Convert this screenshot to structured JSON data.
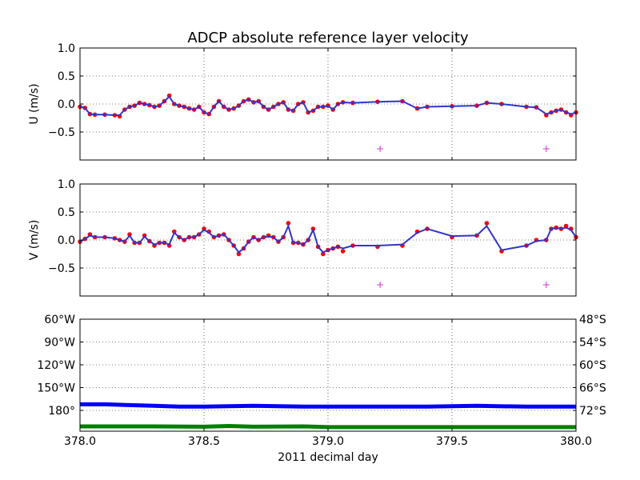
{
  "title": "ADCP absolute reference layer velocity",
  "chart_data": [
    {
      "type": "line",
      "panel": "u",
      "ylabel": "U (m/s)",
      "xlim": [
        378.0,
        380.0
      ],
      "ylim": [
        -1.0,
        1.0
      ],
      "yticks": [
        -0.5,
        0.0,
        0.5,
        1.0
      ],
      "ytick_labels": [
        "−0.5",
        "0.0",
        "0.5",
        "1.0"
      ],
      "xticks": [
        378.0,
        378.5,
        379.0,
        379.5,
        380.0
      ],
      "grid": true,
      "series": [
        {
          "style": "dots",
          "color": "#ff0000",
          "x": [
            378.0,
            378.02,
            378.04,
            378.06,
            378.1,
            378.14,
            378.16,
            378.18,
            378.2,
            378.22,
            378.24,
            378.26,
            378.28,
            378.3,
            378.32,
            378.34,
            378.36,
            378.38,
            378.4,
            378.42,
            378.44,
            378.46,
            378.48,
            378.5,
            378.52,
            378.54,
            378.56,
            378.58,
            378.6,
            378.62,
            378.64,
            378.66,
            378.68,
            378.7,
            378.72,
            378.74,
            378.76,
            378.78,
            378.8,
            378.82,
            378.84,
            378.86,
            378.88,
            378.9,
            378.92,
            378.94,
            378.96,
            378.98,
            379.0,
            379.02,
            379.04,
            379.06,
            379.1,
            379.2,
            379.3,
            379.36,
            379.4,
            379.5,
            379.6,
            379.64,
            379.7,
            379.8,
            379.84,
            379.88,
            379.9,
            379.92,
            379.94,
            379.96,
            379.98,
            380.0
          ],
          "y": [
            -0.05,
            -0.07,
            -0.18,
            -0.19,
            -0.19,
            -0.2,
            -0.22,
            -0.1,
            -0.05,
            -0.03,
            0.02,
            0.0,
            -0.02,
            -0.05,
            -0.03,
            0.05,
            0.15,
            0.0,
            -0.03,
            -0.05,
            -0.08,
            -0.1,
            -0.05,
            -0.15,
            -0.18,
            -0.05,
            0.05,
            -0.05,
            -0.1,
            -0.08,
            -0.03,
            0.05,
            0.08,
            0.03,
            0.05,
            -0.05,
            -0.1,
            -0.05,
            0.0,
            0.03,
            -0.1,
            -0.12,
            0.0,
            0.03,
            -0.15,
            -0.12,
            -0.05,
            -0.05,
            -0.03,
            -0.1,
            0.0,
            0.03,
            0.02,
            0.04,
            0.05,
            -0.08,
            -0.05,
            -0.04,
            -0.03,
            0.02,
            0.0,
            -0.05,
            -0.06,
            -0.2,
            -0.15,
            -0.12,
            -0.1,
            -0.15,
            -0.2,
            -0.15
          ]
        },
        {
          "style": "line",
          "color": "#3333cc",
          "x": [
            378.0,
            378.02,
            378.04,
            378.06,
            378.1,
            378.14,
            378.16,
            378.18,
            378.2,
            378.22,
            378.24,
            378.26,
            378.28,
            378.3,
            378.32,
            378.34,
            378.36,
            378.38,
            378.4,
            378.42,
            378.44,
            378.46,
            378.48,
            378.5,
            378.52,
            378.54,
            378.56,
            378.58,
            378.6,
            378.62,
            378.64,
            378.66,
            378.68,
            378.7,
            378.72,
            378.74,
            378.76,
            378.78,
            378.8,
            378.82,
            378.84,
            378.86,
            378.88,
            378.9,
            378.92,
            378.94,
            378.96,
            378.98,
            379.0,
            379.02,
            379.04,
            379.06,
            379.1,
            379.2,
            379.3,
            379.36,
            379.4,
            379.5,
            379.6,
            379.64,
            379.7,
            379.8,
            379.84,
            379.88,
            379.9,
            379.92,
            379.94,
            379.96,
            379.98,
            380.0
          ],
          "y": [
            -0.05,
            -0.07,
            -0.18,
            -0.19,
            -0.19,
            -0.2,
            -0.2,
            -0.1,
            -0.05,
            -0.03,
            0.02,
            0.0,
            -0.02,
            -0.05,
            -0.03,
            0.05,
            0.13,
            0.0,
            -0.03,
            -0.05,
            -0.08,
            -0.1,
            -0.05,
            -0.15,
            -0.18,
            -0.05,
            0.05,
            -0.05,
            -0.1,
            -0.08,
            -0.03,
            0.05,
            0.08,
            0.03,
            0.05,
            -0.05,
            -0.1,
            -0.05,
            0.0,
            0.03,
            -0.1,
            -0.12,
            0.0,
            0.03,
            -0.15,
            -0.12,
            -0.05,
            -0.05,
            -0.03,
            -0.1,
            0.0,
            0.03,
            0.02,
            0.04,
            0.05,
            -0.08,
            -0.05,
            -0.04,
            -0.03,
            0.02,
            0.0,
            -0.05,
            -0.06,
            -0.18,
            -0.15,
            -0.12,
            -0.1,
            -0.15,
            -0.18,
            -0.15
          ]
        },
        {
          "style": "plus",
          "color": "#cc33cc",
          "x": [
            379.21,
            379.88
          ],
          "y": [
            -0.8,
            -0.8
          ]
        }
      ]
    },
    {
      "type": "line",
      "panel": "v",
      "ylabel": "V (m/s)",
      "xlim": [
        378.0,
        380.0
      ],
      "ylim": [
        -1.0,
        1.0
      ],
      "yticks": [
        -0.5,
        0.0,
        0.5,
        1.0
      ],
      "ytick_labels": [
        "−0.5",
        "0.0",
        "0.5",
        "1.0"
      ],
      "xticks": [
        378.0,
        378.5,
        379.0,
        379.5,
        380.0
      ],
      "grid": true,
      "series": [
        {
          "style": "dots",
          "color": "#ff0000",
          "x": [
            378.0,
            378.02,
            378.04,
            378.06,
            378.1,
            378.14,
            378.16,
            378.18,
            378.2,
            378.22,
            378.24,
            378.26,
            378.28,
            378.3,
            378.32,
            378.34,
            378.36,
            378.38,
            378.4,
            378.42,
            378.44,
            378.46,
            378.48,
            378.5,
            378.52,
            378.54,
            378.56,
            378.58,
            378.6,
            378.62,
            378.64,
            378.66,
            378.68,
            378.7,
            378.72,
            378.74,
            378.76,
            378.78,
            378.8,
            378.82,
            378.84,
            378.86,
            378.88,
            378.9,
            378.92,
            378.94,
            378.96,
            378.98,
            379.0,
            379.02,
            379.04,
            379.06,
            379.1,
            379.2,
            379.3,
            379.36,
            379.4,
            379.5,
            379.6,
            379.64,
            379.7,
            379.8,
            379.84,
            379.88,
            379.9,
            379.92,
            379.94,
            379.96,
            379.98,
            380.0
          ],
          "y": [
            -0.03,
            0.02,
            0.1,
            0.05,
            0.05,
            0.03,
            0.0,
            -0.03,
            0.1,
            -0.05,
            -0.05,
            0.08,
            -0.02,
            -0.1,
            -0.05,
            -0.05,
            -0.1,
            0.15,
            0.05,
            0.0,
            0.05,
            0.05,
            0.1,
            0.2,
            0.15,
            0.05,
            0.08,
            0.1,
            0.0,
            -0.1,
            -0.25,
            -0.15,
            -0.03,
            0.05,
            0.0,
            0.05,
            0.08,
            0.05,
            -0.03,
            0.05,
            0.3,
            -0.05,
            -0.05,
            -0.08,
            0.0,
            0.2,
            -0.12,
            -0.25,
            -0.18,
            -0.15,
            -0.12,
            -0.2,
            -0.1,
            -0.12,
            -0.1,
            0.15,
            0.2,
            0.05,
            0.08,
            0.3,
            -0.2,
            -0.1,
            0.0,
            0.0,
            0.2,
            0.22,
            0.2,
            0.25,
            0.2,
            0.05
          ]
        },
        {
          "style": "line",
          "color": "#3333cc",
          "x": [
            378.0,
            378.02,
            378.04,
            378.06,
            378.1,
            378.14,
            378.16,
            378.18,
            378.2,
            378.22,
            378.24,
            378.26,
            378.28,
            378.3,
            378.32,
            378.34,
            378.36,
            378.38,
            378.4,
            378.42,
            378.44,
            378.46,
            378.48,
            378.5,
            378.52,
            378.54,
            378.56,
            378.58,
            378.6,
            378.62,
            378.64,
            378.66,
            378.68,
            378.7,
            378.72,
            378.74,
            378.76,
            378.78,
            378.8,
            378.82,
            378.84,
            378.86,
            378.88,
            378.9,
            378.92,
            378.94,
            378.96,
            378.98,
            379.0,
            379.02,
            379.04,
            379.06,
            379.1,
            379.2,
            379.3,
            379.36,
            379.4,
            379.5,
            379.6,
            379.64,
            379.7,
            379.8,
            379.84,
            379.88,
            379.9,
            379.92,
            379.94,
            379.96,
            379.98,
            380.0
          ],
          "y": [
            -0.03,
            0.02,
            0.08,
            0.05,
            0.05,
            0.03,
            0.0,
            -0.03,
            0.08,
            -0.05,
            -0.05,
            0.06,
            -0.02,
            -0.08,
            -0.05,
            -0.05,
            -0.08,
            0.13,
            0.05,
            0.0,
            0.05,
            0.05,
            0.1,
            0.18,
            0.13,
            0.05,
            0.08,
            0.1,
            0.0,
            -0.1,
            -0.22,
            -0.15,
            -0.03,
            0.05,
            0.0,
            0.05,
            0.06,
            0.05,
            -0.03,
            0.05,
            0.25,
            -0.05,
            -0.05,
            -0.08,
            0.0,
            0.18,
            -0.12,
            -0.22,
            -0.18,
            -0.15,
            -0.12,
            -0.15,
            -0.1,
            -0.1,
            -0.08,
            0.13,
            0.2,
            0.07,
            0.08,
            0.25,
            -0.18,
            -0.1,
            -0.02,
            0.0,
            0.2,
            0.22,
            0.2,
            0.22,
            0.18,
            0.05
          ]
        },
        {
          "style": "plus",
          "color": "#cc33cc",
          "x": [
            379.21,
            379.88
          ],
          "y": [
            -0.8,
            -0.8
          ]
        }
      ]
    },
    {
      "type": "line",
      "panel": "position",
      "xlabel": "2011 decimal day",
      "xlim": [
        378.0,
        380.0
      ],
      "xticks": [
        378.0,
        378.5,
        379.0,
        379.5,
        380.0
      ],
      "xtick_labels": [
        "378.0",
        "378.5",
        "379.0",
        "379.5",
        "380.0"
      ],
      "grid": true,
      "ytick_labels_left": [
        "60°W",
        "90°W",
        "120°W",
        "150°W",
        "180°"
      ],
      "ytick_labels_right": [
        "48°S",
        "54°S",
        "60°S",
        "66°S",
        "72°S"
      ],
      "left_color": "#0000ff",
      "right_color": "#008000",
      "series": [
        {
          "name_axis": "longitude",
          "color": "#0000ff",
          "x": [
            378.0,
            378.1,
            378.2,
            378.3,
            378.4,
            378.5,
            378.7,
            378.9,
            379.0,
            379.2,
            379.4,
            379.6,
            379.8,
            380.0
          ],
          "y": [
            -172,
            -172,
            -173,
            -174,
            -175,
            -175,
            -174,
            -175,
            -175,
            -175,
            -175,
            -174,
            -175,
            -175
          ]
        },
        {
          "name_axis": "latitude",
          "color": "#008000",
          "x": [
            378.0,
            378.3,
            378.5,
            378.6,
            378.7,
            378.9,
            379.0,
            379.5,
            380.0
          ],
          "y": [
            -76.2,
            -76.2,
            -76.3,
            -76.1,
            -76.3,
            -76.2,
            -76.4,
            -76.4,
            -76.4
          ]
        }
      ]
    }
  ]
}
